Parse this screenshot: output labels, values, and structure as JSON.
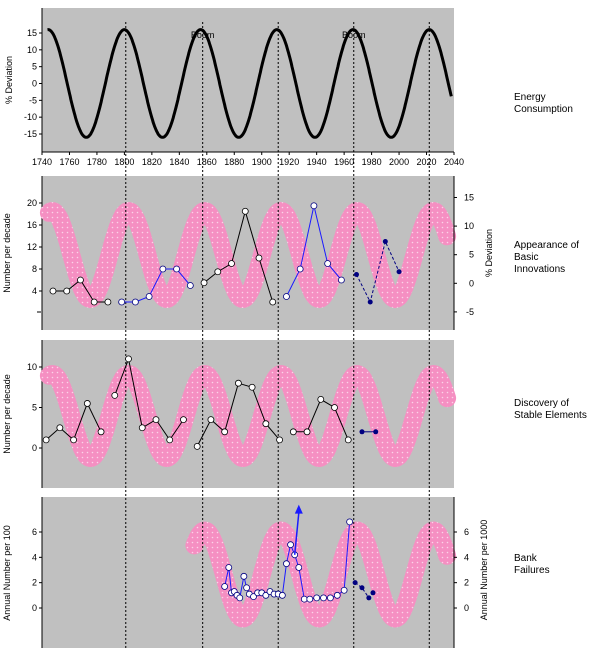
{
  "chart_data": [
    {
      "type": "line",
      "label": "Energy\nConsumption",
      "ylabel": "% Deviation",
      "ylim": [
        -20,
        20
      ],
      "yticks": [
        -15,
        -10,
        -5,
        0,
        5,
        10,
        15
      ],
      "xlim": [
        1740,
        2040
      ],
      "xticks": [
        1740,
        1760,
        1780,
        1800,
        1820,
        1840,
        1860,
        1880,
        1900,
        1920,
        1940,
        1960,
        1980,
        2000,
        2020,
        2040
      ],
      "annotations": [
        {
          "text": "Boom",
          "x": 1857
        },
        {
          "text": "Boom",
          "x": 1967
        }
      ],
      "wave": {
        "amplitude": 16,
        "period": 55.5,
        "peak_x": 1800,
        "x_start": 1744,
        "x_end": 2038
      }
    },
    {
      "type": "line",
      "label": "Appearance of Basic\nInnovations",
      "ylabel": "Number per decade",
      "y2label": "% Deviation",
      "ylim": [
        -2,
        24
      ],
      "yticks": [
        4,
        8,
        12,
        16,
        20
      ],
      "y2ticks": [
        -5,
        0,
        5,
        10,
        15
      ],
      "y2_map": [
        [
          -5,
          0.2
        ],
        [
          15,
          21
        ]
      ],
      "series": [
        {
          "color": "black",
          "points": [
            [
              1748,
              4
            ],
            [
              1758,
              4
            ],
            [
              1768,
              6
            ],
            [
              1778,
              2
            ],
            [
              1788,
              2
            ]
          ]
        },
        {
          "color": "blue",
          "points": [
            [
              1798,
              2
            ],
            [
              1808,
              2
            ],
            [
              1818,
              3
            ],
            [
              1828,
              8
            ],
            [
              1838,
              8
            ],
            [
              1848,
              5
            ]
          ]
        },
        {
          "color": "black",
          "points": [
            [
              1858,
              5.5
            ],
            [
              1868,
              7.5
            ],
            [
              1878,
              9
            ],
            [
              1888,
              18.5
            ],
            [
              1898,
              10
            ],
            [
              1908,
              2
            ]
          ]
        },
        {
          "color": "blue",
          "points": [
            [
              1918,
              3
            ],
            [
              1928,
              8
            ],
            [
              1938,
              19.5
            ],
            [
              1948,
              9
            ],
            [
              1958,
              6
            ]
          ]
        },
        {
          "color": "navy",
          "dashed": true,
          "points": [
            [
              1969,
              7
            ],
            [
              1979,
              2
            ],
            [
              1990,
              13
            ],
            [
              2000,
              7.5
            ]
          ]
        }
      ]
    },
    {
      "type": "line",
      "label": "Discovery of\nStable Elements",
      "ylabel": "Number per decade",
      "ylim": [
        -2,
        13
      ],
      "yticks": [
        0,
        5,
        10
      ],
      "series": [
        {
          "color": "black",
          "points": [
            [
              1743,
              1
            ],
            [
              1753,
              2.5
            ],
            [
              1763,
              1
            ],
            [
              1773,
              5.5
            ],
            [
              1783,
              2
            ]
          ]
        },
        {
          "color": "black",
          "points": [
            [
              1793,
              6.5
            ],
            [
              1803,
              11
            ],
            [
              1813,
              2.5
            ],
            [
              1823,
              3.5
            ],
            [
              1833,
              1
            ],
            [
              1843,
              3.5
            ]
          ]
        },
        {
          "color": "black",
          "points": [
            [
              1853,
              0.2
            ],
            [
              1863,
              3.5
            ],
            [
              1873,
              2
            ],
            [
              1883,
              8
            ],
            [
              1893,
              7.5
            ],
            [
              1903,
              3
            ],
            [
              1913,
              1
            ]
          ]
        },
        {
          "color": "black",
          "points": [
            [
              1923,
              2
            ],
            [
              1933,
              2
            ],
            [
              1943,
              6
            ],
            [
              1953,
              5
            ],
            [
              1963,
              1
            ]
          ]
        },
        {
          "color": "navy",
          "points": [
            [
              1973,
              2
            ],
            [
              1983,
              2
            ]
          ]
        }
      ]
    },
    {
      "type": "line",
      "label": "Bank\nFailures",
      "ylabel": "Annual Number per 100",
      "y2label": "Annual Number per 1000",
      "ylim": [
        -2,
        8
      ],
      "yticks": [
        0,
        2,
        4,
        6
      ],
      "y2ticks": [
        0,
        2,
        4,
        6
      ],
      "series": [
        {
          "color": "blue",
          "points": [
            [
              1873,
              1.7
            ],
            [
              1876,
              3.2
            ],
            [
              1878,
              1.2
            ],
            [
              1880,
              1.3
            ],
            [
              1882,
              1.0
            ],
            [
              1884,
              0.8
            ],
            [
              1887,
              2.5
            ],
            [
              1889,
              1.6
            ],
            [
              1891,
              1.1
            ],
            [
              1894,
              0.9
            ],
            [
              1897,
              1.2
            ],
            [
              1900,
              1.2
            ],
            [
              1903,
              1.0
            ],
            [
              1906,
              1.3
            ],
            [
              1909,
              1.1
            ],
            [
              1912,
              1.1
            ],
            [
              1915,
              1.0
            ],
            [
              1918,
              3.5
            ],
            [
              1921,
              5.0
            ],
            [
              1924,
              4.2
            ],
            [
              1927,
              3.2
            ],
            [
              1931,
              0.7
            ],
            [
              1935,
              0.7
            ],
            [
              1940,
              0.8
            ],
            [
              1945,
              0.8
            ],
            [
              1950,
              0.8
            ],
            [
              1955,
              1.0
            ],
            [
              1960,
              1.4
            ],
            [
              1964,
              6.8
            ]
          ]
        },
        {
          "color": "navy",
          "dashed": true,
          "points": [
            [
              1968,
              2.0
            ],
            [
              1973,
              1.6
            ],
            [
              1978,
              0.8
            ],
            [
              1981,
              1.2
            ]
          ]
        }
      ],
      "arrow": {
        "from": [
          1924,
          4.2
        ],
        "to": [
          1927,
          8
        ]
      }
    }
  ],
  "cycle_ticks_x": [
    1801,
    1857,
    1912,
    1967,
    2022
  ]
}
